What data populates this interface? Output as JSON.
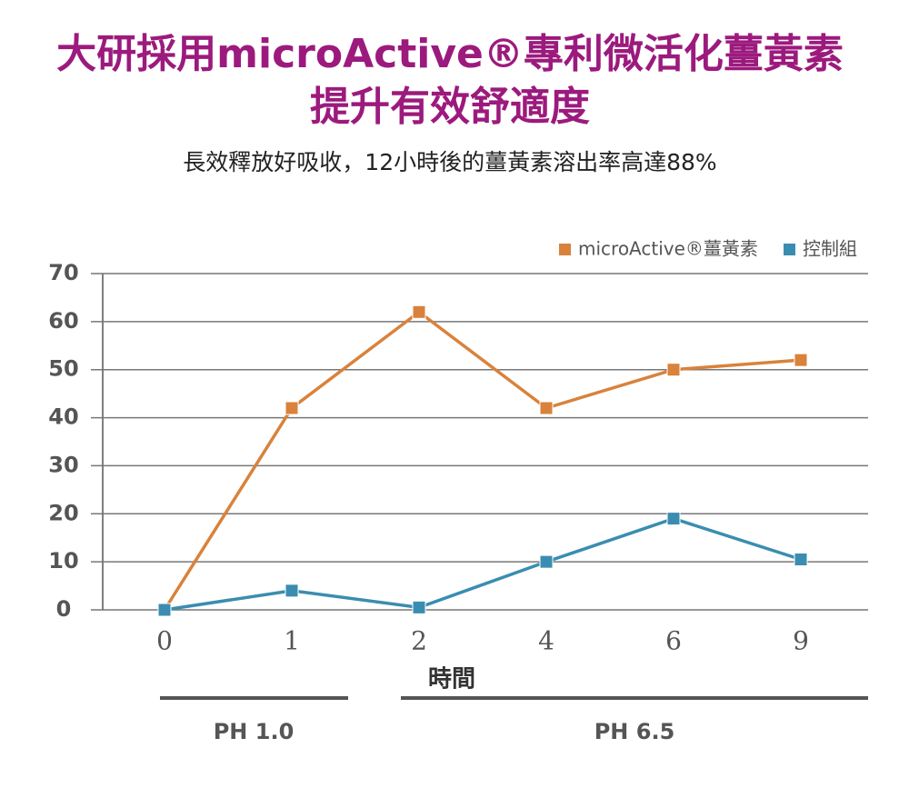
{
  "chart_data": {
    "type": "line",
    "title": [
      "大研採用microActive®專利微活化薑黃素",
      "提升有效舒適度"
    ],
    "subtitle": "長效釋放好吸收，12小時後的薑黃素溶出率高達88%",
    "x_label": "時間",
    "categories": [
      "0",
      "1",
      "2",
      "4",
      "6",
      "9"
    ],
    "series": [
      {
        "name": "microActive®薑黃素",
        "color": "#d9823b",
        "values": [
          0,
          42,
          62,
          42,
          50,
          52
        ]
      },
      {
        "name": "控制組",
        "color": "#3a8db0",
        "values": [
          0,
          4,
          0.5,
          10,
          19,
          10.5
        ]
      }
    ],
    "ylim": [
      0,
      70
    ],
    "yticks": [
      0,
      10,
      20,
      30,
      40,
      50,
      60,
      70
    ],
    "grid": true,
    "legend": "top-right",
    "annotations": [
      "PH 1.0",
      "PH 6.5"
    ]
  }
}
